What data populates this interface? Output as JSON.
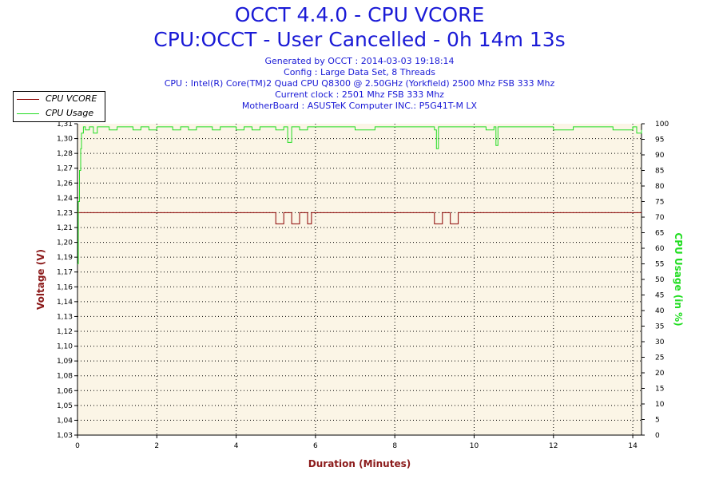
{
  "header": {
    "title": "OCCT 4.4.0 - CPU VCORE",
    "subtitle": "CPU:OCCT - User Cancelled - 0h 14m 13s",
    "info_lines": [
      "Generated by OCCT : 2014-03-03 19:18:14",
      "Config : Large Data Set, 8 Threads",
      "CPU : Intel(R) Core(TM)2 Quad CPU Q8300 @ 2.50GHz (Yorkfield) 2500 Mhz FSB 333 Mhz",
      "Current clock : 2501 Mhz FSB 333 Mhz",
      "MotherBoard : ASUSTeK Computer INC.: P5G41T-M LX"
    ]
  },
  "colors": {
    "vcore": "#8b0000",
    "usage": "#22dd22",
    "plot_bg": "#fbf5e6",
    "grid": "#000000",
    "left_axis": "#8b1a1a",
    "right_axis": "#22dd22",
    "title": "#1a1ad6"
  },
  "chart_data": {
    "type": "line",
    "title": "OCCT 4.4.0 - CPU VCORE",
    "xlabel": "Duration (Minutes)",
    "ylabel_left": "Voltage (V)",
    "ylabel_right": "CPU Usage (in %)",
    "xlim": [
      0,
      14.22
    ],
    "ylim_left": [
      1.03,
      1.31
    ],
    "ylim_right": [
      0,
      100
    ],
    "x_ticks": [
      "0",
      "2",
      "4",
      "6",
      "8",
      "10",
      "12",
      "14"
    ],
    "y_left_ticks": [
      "1,03",
      "1,04",
      "1,05",
      "1,06",
      "1,08",
      "1,09",
      "1,10",
      "1,12",
      "1,13",
      "1,14",
      "1,16",
      "1,17",
      "1,19",
      "1,20",
      "1,21",
      "1,23",
      "1,24",
      "1,26",
      "1,27",
      "1,28",
      "1,30",
      "1,31"
    ],
    "y_right_ticks": [
      "0",
      "5",
      "10",
      "15",
      "20",
      "25",
      "30",
      "35",
      "40",
      "45",
      "50",
      "55",
      "60",
      "65",
      "70",
      "75",
      "80",
      "85",
      "90",
      "95",
      "100"
    ],
    "grid": true,
    "legend_position": "top-left",
    "series": [
      {
        "name": "CPU VCORE",
        "axis": "left",
        "x": [
          0,
          0.05,
          0.1,
          0.2,
          0.3,
          0.5,
          0.7,
          0.9,
          1.1,
          1.3,
          1.5,
          1.7,
          1.9,
          2.1,
          2.3,
          2.5,
          2.7,
          2.9,
          3.1,
          3.2,
          3.3,
          3.4,
          3.5,
          3.7,
          3.9,
          4.0,
          4.2,
          4.4,
          4.6,
          4.8,
          5.0,
          5.2,
          5.4,
          5.6,
          5.8,
          5.9,
          6.0,
          6.2,
          6.4,
          6.6,
          6.8,
          7.0,
          7.2,
          7.4,
          7.6,
          7.8,
          8.0,
          8.2,
          8.4,
          8.5,
          8.6,
          8.8,
          9.0,
          9.2,
          9.4,
          9.6,
          9.8,
          10.0,
          10.2,
          10.4,
          10.6,
          10.8,
          11.0,
          11.2,
          11.4,
          11.6,
          11.8,
          12.0,
          12.2,
          12.4,
          12.6,
          12.8,
          13.0,
          13.2,
          13.4,
          13.6,
          13.8,
          14.0,
          14.22
        ],
        "y": [
          1.23,
          1.23,
          1.23,
          1.23,
          1.23,
          1.23,
          1.23,
          1.23,
          1.23,
          1.23,
          1.23,
          1.23,
          1.23,
          1.23,
          1.23,
          1.23,
          1.23,
          1.23,
          1.23,
          1.23,
          1.23,
          1.23,
          1.23,
          1.23,
          1.23,
          1.23,
          1.23,
          1.23,
          1.23,
          1.23,
          1.22,
          1.23,
          1.22,
          1.23,
          1.22,
          1.23,
          1.23,
          1.23,
          1.23,
          1.23,
          1.23,
          1.23,
          1.23,
          1.23,
          1.23,
          1.23,
          1.23,
          1.23,
          1.23,
          1.23,
          1.23,
          1.23,
          1.22,
          1.23,
          1.22,
          1.23,
          1.23,
          1.23,
          1.23,
          1.23,
          1.23,
          1.23,
          1.23,
          1.23,
          1.23,
          1.23,
          1.23,
          1.23,
          1.23,
          1.23,
          1.23,
          1.23,
          1.23,
          1.23,
          1.23,
          1.23,
          1.23,
          1.23,
          1.23
        ]
      },
      {
        "name": "CPU Usage",
        "axis": "right",
        "x": [
          0,
          0.02,
          0.05,
          0.08,
          0.1,
          0.15,
          0.2,
          0.3,
          0.4,
          0.5,
          0.6,
          0.8,
          1.0,
          1.2,
          1.4,
          1.6,
          1.8,
          2.0,
          2.2,
          2.4,
          2.6,
          2.8,
          3.0,
          3.2,
          3.4,
          3.6,
          3.8,
          4.0,
          4.2,
          4.4,
          4.6,
          4.8,
          5.0,
          5.2,
          5.3,
          5.4,
          5.6,
          5.8,
          6.0,
          6.5,
          7.0,
          7.5,
          8.0,
          8.5,
          9.0,
          9.05,
          9.1,
          9.5,
          10.0,
          10.3,
          10.5,
          10.55,
          10.6,
          11.0,
          11.5,
          12.0,
          12.5,
          13.0,
          13.5,
          14.0,
          14.1,
          14.22
        ],
        "y": [
          55,
          75,
          85,
          92,
          97,
          99,
          98,
          99,
          97,
          99,
          99,
          98,
          99,
          99,
          98,
          99,
          98,
          99,
          99,
          98,
          99,
          98,
          99,
          99,
          98,
          99,
          99,
          98,
          99,
          98,
          99,
          99,
          98,
          99,
          94,
          99,
          98,
          99,
          99,
          99,
          98,
          99,
          99,
          99,
          98,
          92,
          99,
          99,
          99,
          98,
          99,
          93,
          99,
          99,
          99,
          98,
          99,
          99,
          98,
          99,
          97,
          98
        ]
      }
    ]
  }
}
